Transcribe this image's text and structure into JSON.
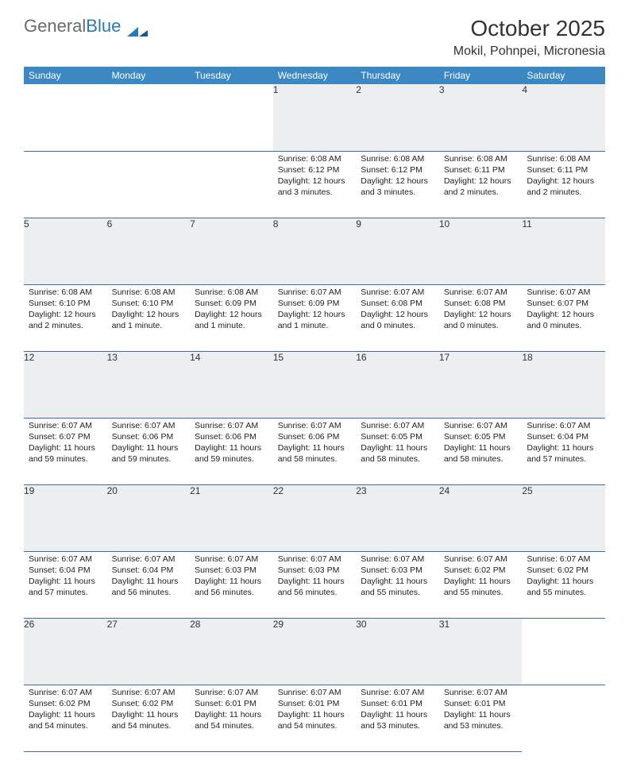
{
  "brand": {
    "part1": "General",
    "part2": "Blue",
    "logo_color": "#2978b8"
  },
  "title": {
    "monthyear": "October 2025",
    "location": "Mokil, Pohnpei, Micronesia"
  },
  "colors": {
    "header_bg": "#3b88c3",
    "header_fg": "#ffffff",
    "daynum_bg": "#eceef0",
    "rule": "#3b6fa0",
    "text": "#222222"
  },
  "weekdays": [
    "Sunday",
    "Monday",
    "Tuesday",
    "Wednesday",
    "Thursday",
    "Friday",
    "Saturday"
  ],
  "weeks": [
    [
      null,
      null,
      null,
      {
        "n": "1",
        "sr": "6:08 AM",
        "ss": "6:12 PM",
        "dl": "12 hours and 3 minutes."
      },
      {
        "n": "2",
        "sr": "6:08 AM",
        "ss": "6:12 PM",
        "dl": "12 hours and 3 minutes."
      },
      {
        "n": "3",
        "sr": "6:08 AM",
        "ss": "6:11 PM",
        "dl": "12 hours and 2 minutes."
      },
      {
        "n": "4",
        "sr": "6:08 AM",
        "ss": "6:11 PM",
        "dl": "12 hours and 2 minutes."
      }
    ],
    [
      {
        "n": "5",
        "sr": "6:08 AM",
        "ss": "6:10 PM",
        "dl": "12 hours and 2 minutes."
      },
      {
        "n": "6",
        "sr": "6:08 AM",
        "ss": "6:10 PM",
        "dl": "12 hours and 1 minute."
      },
      {
        "n": "7",
        "sr": "6:08 AM",
        "ss": "6:09 PM",
        "dl": "12 hours and 1 minute."
      },
      {
        "n": "8",
        "sr": "6:07 AM",
        "ss": "6:09 PM",
        "dl": "12 hours and 1 minute."
      },
      {
        "n": "9",
        "sr": "6:07 AM",
        "ss": "6:08 PM",
        "dl": "12 hours and 0 minutes."
      },
      {
        "n": "10",
        "sr": "6:07 AM",
        "ss": "6:08 PM",
        "dl": "12 hours and 0 minutes."
      },
      {
        "n": "11",
        "sr": "6:07 AM",
        "ss": "6:07 PM",
        "dl": "12 hours and 0 minutes."
      }
    ],
    [
      {
        "n": "12",
        "sr": "6:07 AM",
        "ss": "6:07 PM",
        "dl": "11 hours and 59 minutes."
      },
      {
        "n": "13",
        "sr": "6:07 AM",
        "ss": "6:06 PM",
        "dl": "11 hours and 59 minutes."
      },
      {
        "n": "14",
        "sr": "6:07 AM",
        "ss": "6:06 PM",
        "dl": "11 hours and 59 minutes."
      },
      {
        "n": "15",
        "sr": "6:07 AM",
        "ss": "6:06 PM",
        "dl": "11 hours and 58 minutes."
      },
      {
        "n": "16",
        "sr": "6:07 AM",
        "ss": "6:05 PM",
        "dl": "11 hours and 58 minutes."
      },
      {
        "n": "17",
        "sr": "6:07 AM",
        "ss": "6:05 PM",
        "dl": "11 hours and 58 minutes."
      },
      {
        "n": "18",
        "sr": "6:07 AM",
        "ss": "6:04 PM",
        "dl": "11 hours and 57 minutes."
      }
    ],
    [
      {
        "n": "19",
        "sr": "6:07 AM",
        "ss": "6:04 PM",
        "dl": "11 hours and 57 minutes."
      },
      {
        "n": "20",
        "sr": "6:07 AM",
        "ss": "6:04 PM",
        "dl": "11 hours and 56 minutes."
      },
      {
        "n": "21",
        "sr": "6:07 AM",
        "ss": "6:03 PM",
        "dl": "11 hours and 56 minutes."
      },
      {
        "n": "22",
        "sr": "6:07 AM",
        "ss": "6:03 PM",
        "dl": "11 hours and 56 minutes."
      },
      {
        "n": "23",
        "sr": "6:07 AM",
        "ss": "6:03 PM",
        "dl": "11 hours and 55 minutes."
      },
      {
        "n": "24",
        "sr": "6:07 AM",
        "ss": "6:02 PM",
        "dl": "11 hours and 55 minutes."
      },
      {
        "n": "25",
        "sr": "6:07 AM",
        "ss": "6:02 PM",
        "dl": "11 hours and 55 minutes."
      }
    ],
    [
      {
        "n": "26",
        "sr": "6:07 AM",
        "ss": "6:02 PM",
        "dl": "11 hours and 54 minutes."
      },
      {
        "n": "27",
        "sr": "6:07 AM",
        "ss": "6:02 PM",
        "dl": "11 hours and 54 minutes."
      },
      {
        "n": "28",
        "sr": "6:07 AM",
        "ss": "6:01 PM",
        "dl": "11 hours and 54 minutes."
      },
      {
        "n": "29",
        "sr": "6:07 AM",
        "ss": "6:01 PM",
        "dl": "11 hours and 54 minutes."
      },
      {
        "n": "30",
        "sr": "6:07 AM",
        "ss": "6:01 PM",
        "dl": "11 hours and 53 minutes."
      },
      {
        "n": "31",
        "sr": "6:07 AM",
        "ss": "6:01 PM",
        "dl": "11 hours and 53 minutes."
      },
      null
    ]
  ],
  "labels": {
    "sunrise": "Sunrise:",
    "sunset": "Sunset:",
    "daylight": "Daylight:"
  }
}
